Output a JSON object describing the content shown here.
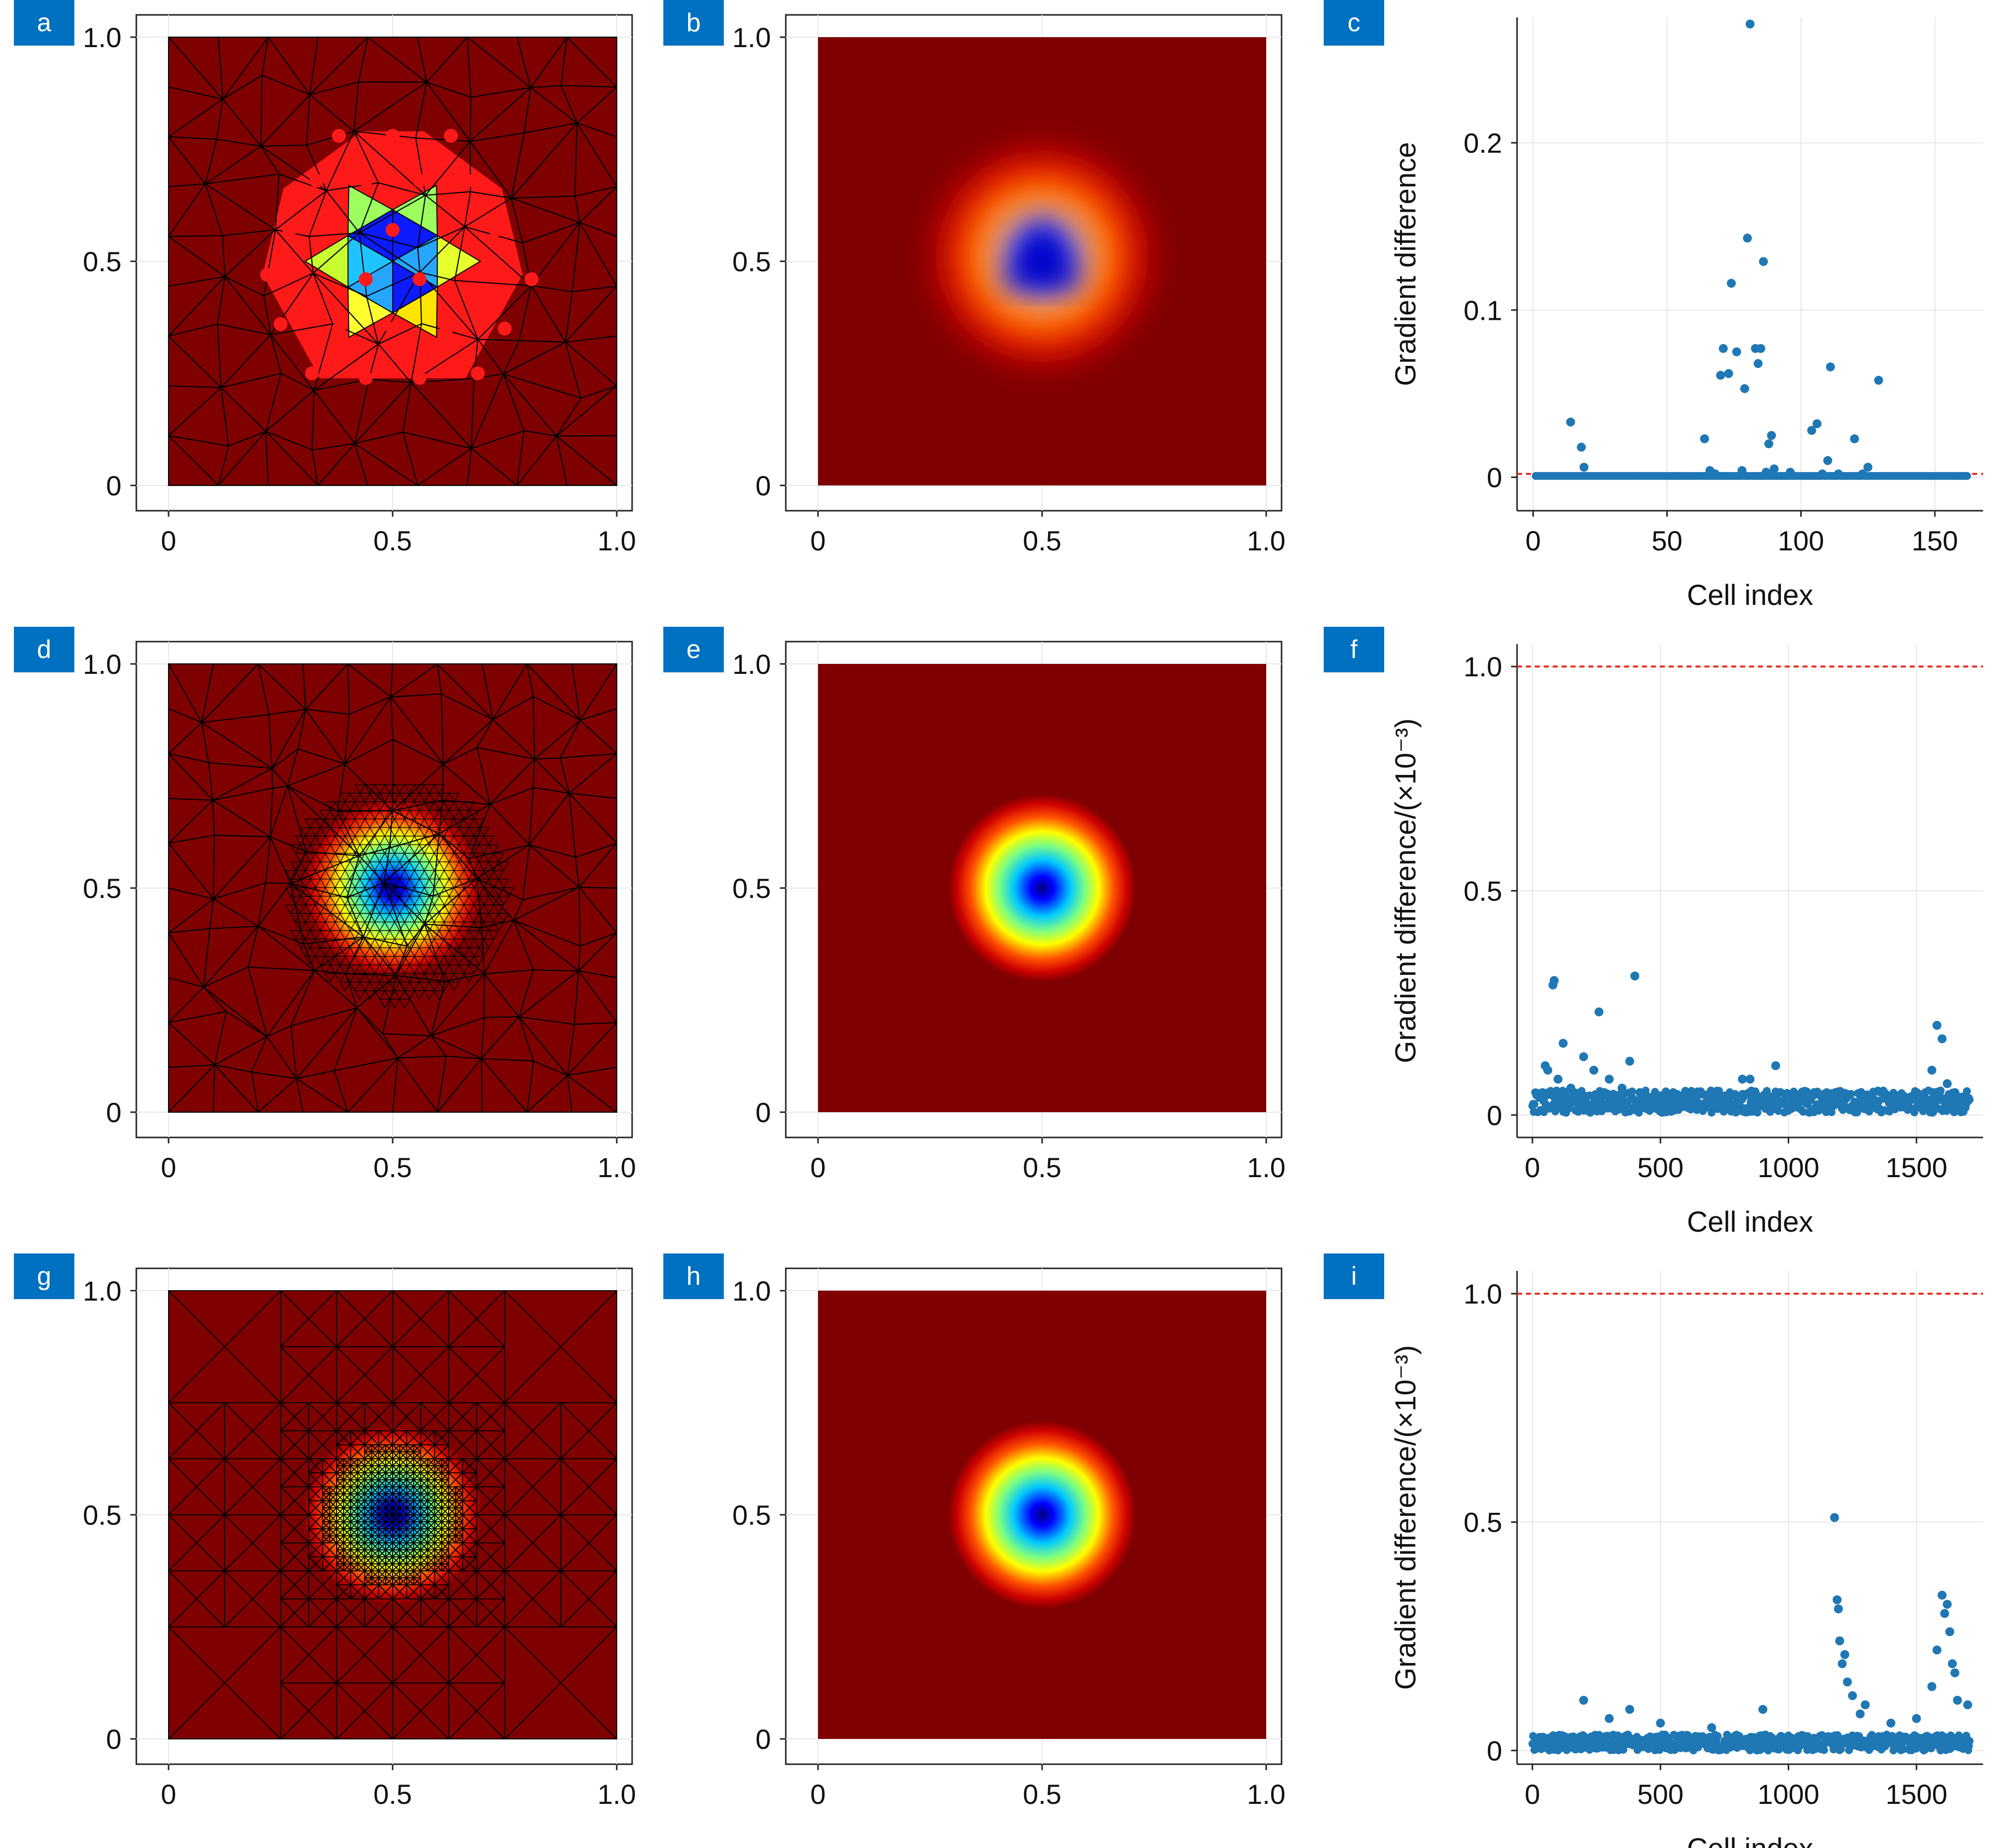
{
  "figure": {
    "badge_color": "#0070c0",
    "panel_letters": [
      "a",
      "b",
      "c",
      "d",
      "e",
      "f",
      "g",
      "h",
      "i"
    ]
  },
  "colors": {
    "field_background": "#7f0000",
    "mesh_line": "#000000",
    "node_marker": "#ff1a1a",
    "scatter_point": "#1f77b4",
    "reference_line": "#e8281e",
    "grid": "#e6e6e6"
  },
  "chart_data": [
    {
      "panel": "a",
      "type": "heatmap",
      "description_variant": "coarse triangular mesh with sampled nodes",
      "xticks": [
        "0",
        "0.5",
        "1.0"
      ],
      "yticks": [
        "0",
        "0.5",
        "1.0"
      ],
      "xlim": [
        0,
        1
      ],
      "ylim": [
        0,
        1
      ],
      "colormap": "jet",
      "node_markers": true
    },
    {
      "panel": "b",
      "type": "heatmap",
      "description_variant": "smoothed coarse field",
      "xticks": [
        "0",
        "0.5",
        "1.0"
      ],
      "yticks": [
        "0",
        "0.5",
        "1.0"
      ],
      "xlim": [
        0,
        1
      ],
      "ylim": [
        0,
        1
      ],
      "colormap": "jet"
    },
    {
      "panel": "c",
      "type": "scatter",
      "xlabel": "Cell index",
      "ylabel": "Gradient difference",
      "xlim": [
        -6,
        168
      ],
      "ylim": [
        -0.02,
        0.275
      ],
      "xticks": [
        0,
        50,
        100,
        150
      ],
      "yticks": [
        0,
        0.1,
        0.2
      ],
      "ytick_labels": [
        "0",
        "0.1",
        "0.2"
      ],
      "reference_y": 0.002,
      "grid": true,
      "points": [
        [
          14,
          0.033
        ],
        [
          18,
          0.018
        ],
        [
          19,
          0.006
        ],
        [
          64,
          0.023
        ],
        [
          66,
          0.004
        ],
        [
          68,
          0.002
        ],
        [
          70,
          0.061
        ],
        [
          71,
          0.077
        ],
        [
          73,
          0.062
        ],
        [
          74,
          0.116
        ],
        [
          76,
          0.075
        ],
        [
          78,
          0.004
        ],
        [
          79,
          0.053
        ],
        [
          80,
          0.143
        ],
        [
          81,
          0.271
        ],
        [
          83,
          0.077
        ],
        [
          84,
          0.068
        ],
        [
          85,
          0.077
        ],
        [
          86,
          0.129
        ],
        [
          87,
          0.003
        ],
        [
          88,
          0.02
        ],
        [
          89,
          0.025
        ],
        [
          90,
          0.005
        ],
        [
          96,
          0.003
        ],
        [
          104,
          0.028
        ],
        [
          106,
          0.032
        ],
        [
          108,
          0.002
        ],
        [
          110,
          0.01
        ],
        [
          111,
          0.066
        ],
        [
          114,
          0.002
        ],
        [
          120,
          0.023
        ],
        [
          123,
          0.002
        ],
        [
          125,
          0.006
        ],
        [
          129,
          0.058
        ]
      ]
    },
    {
      "panel": "d",
      "type": "heatmap",
      "description_variant": "locally refined triangular mesh",
      "xticks": [
        "0",
        "0.5",
        "1.0"
      ],
      "yticks": [
        "0",
        "0.5",
        "1.0"
      ],
      "xlim": [
        0,
        1
      ],
      "ylim": [
        0,
        1
      ],
      "colormap": "jet"
    },
    {
      "panel": "e",
      "type": "heatmap",
      "description_variant": "smooth gaussian field",
      "xticks": [
        "0",
        "0.5",
        "1.0"
      ],
      "yticks": [
        "0",
        "0.5",
        "1.0"
      ],
      "xlim": [
        0,
        1
      ],
      "ylim": [
        0,
        1
      ],
      "colormap": "jet"
    },
    {
      "panel": "f",
      "type": "scatter",
      "xlabel": "Cell index",
      "ylabel": "Gradient difference/(×10⁻³)",
      "xlim": [
        -60,
        1760
      ],
      "ylim": [
        -0.05,
        1.05
      ],
      "xticks": [
        0,
        500,
        1000,
        1500
      ],
      "yticks": [
        0,
        0.5,
        1.0
      ],
      "ytick_labels": [
        "0",
        "0.5",
        "1.0"
      ],
      "reference_y": 1.0,
      "grid": true,
      "points": [
        [
          50,
          0.11
        ],
        [
          60,
          0.1
        ],
        [
          80,
          0.29
        ],
        [
          85,
          0.3
        ],
        [
          100,
          0.08
        ],
        [
          120,
          0.16
        ],
        [
          150,
          0.06
        ],
        [
          200,
          0.13
        ],
        [
          240,
          0.1
        ],
        [
          260,
          0.23
        ],
        [
          280,
          0.05
        ],
        [
          300,
          0.08
        ],
        [
          350,
          0.06
        ],
        [
          380,
          0.12
        ],
        [
          400,
          0.31
        ],
        [
          420,
          0.05
        ],
        [
          600,
          0.04
        ],
        [
          700,
          0.05
        ],
        [
          820,
          0.08
        ],
        [
          850,
          0.08
        ],
        [
          950,
          0.11
        ],
        [
          1100,
          0.05
        ],
        [
          1200,
          0.04
        ],
        [
          1350,
          0.03
        ],
        [
          1500,
          0.05
        ],
        [
          1560,
          0.1
        ],
        [
          1580,
          0.2
        ],
        [
          1600,
          0.17
        ],
        [
          1620,
          0.07
        ],
        [
          1650,
          0.05
        ]
      ]
    },
    {
      "panel": "g",
      "type": "heatmap",
      "description_variant": "quadtree refined mesh",
      "xticks": [
        "0",
        "0.5",
        "1.0"
      ],
      "yticks": [
        "0",
        "0.5",
        "1.0"
      ],
      "xlim": [
        0,
        1
      ],
      "ylim": [
        0,
        1
      ],
      "colormap": "jet"
    },
    {
      "panel": "h",
      "type": "heatmap",
      "description_variant": "smooth gaussian field",
      "xticks": [
        "0",
        "0.5",
        "1.0"
      ],
      "yticks": [
        "0",
        "0.5",
        "1.0"
      ],
      "xlim": [
        0,
        1
      ],
      "ylim": [
        0,
        1
      ],
      "colormap": "jet"
    },
    {
      "panel": "i",
      "type": "scatter",
      "xlabel": "Cell index",
      "ylabel": "Gradient difference/(×10⁻³)",
      "xlim": [
        -60,
        1760
      ],
      "ylim": [
        -0.03,
        1.05
      ],
      "xticks": [
        0,
        500,
        1000,
        1500
      ],
      "yticks": [
        0,
        0.5,
        1.0
      ],
      "ytick_labels": [
        "0",
        "0.5",
        "1.0"
      ],
      "reference_y": 1.0,
      "grid": true,
      "points": [
        [
          200,
          0.11
        ],
        [
          300,
          0.07
        ],
        [
          380,
          0.09
        ],
        [
          500,
          0.06
        ],
        [
          700,
          0.05
        ],
        [
          900,
          0.09
        ],
        [
          1180,
          0.51
        ],
        [
          1190,
          0.33
        ],
        [
          1195,
          0.31
        ],
        [
          1200,
          0.24
        ],
        [
          1210,
          0.19
        ],
        [
          1220,
          0.21
        ],
        [
          1230,
          0.15
        ],
        [
          1250,
          0.12
        ],
        [
          1280,
          0.08
        ],
        [
          1300,
          0.1
        ],
        [
          1400,
          0.06
        ],
        [
          1500,
          0.07
        ],
        [
          1560,
          0.14
        ],
        [
          1580,
          0.22
        ],
        [
          1600,
          0.34
        ],
        [
          1610,
          0.3
        ],
        [
          1620,
          0.32
        ],
        [
          1630,
          0.26
        ],
        [
          1640,
          0.19
        ],
        [
          1650,
          0.17
        ],
        [
          1660,
          0.11
        ],
        [
          1700,
          0.1
        ]
      ]
    }
  ]
}
